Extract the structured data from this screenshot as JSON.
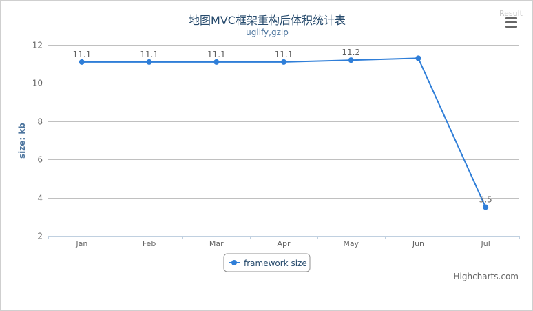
{
  "chart_data": {
    "type": "line",
    "title": "地图MVC框架重构后体积统计表",
    "subtitle": "uglify,gzip",
    "ylabel": "size: kb",
    "xlabel": "",
    "categories": [
      "Jan",
      "Feb",
      "Mar",
      "Apr",
      "May",
      "Jun",
      "Jul"
    ],
    "ylim": [
      2,
      12
    ],
    "yticks": [
      2,
      4,
      6,
      8,
      10,
      12
    ],
    "grid": true,
    "legend_position": "bottom-center",
    "series": [
      {
        "name": "framework size",
        "color": "#2f7ed8",
        "values": [
          11.1,
          11.1,
          11.1,
          11.1,
          11.2,
          11.3,
          3.5
        ],
        "data_labels": [
          "11.1",
          "11.1",
          "11.1",
          "11.1",
          "11.2",
          "",
          "3.5"
        ]
      }
    ]
  },
  "ui": {
    "result_label": "Result",
    "menu_icon": "hamburger-menu-icon",
    "credits": "Highcharts.com"
  }
}
